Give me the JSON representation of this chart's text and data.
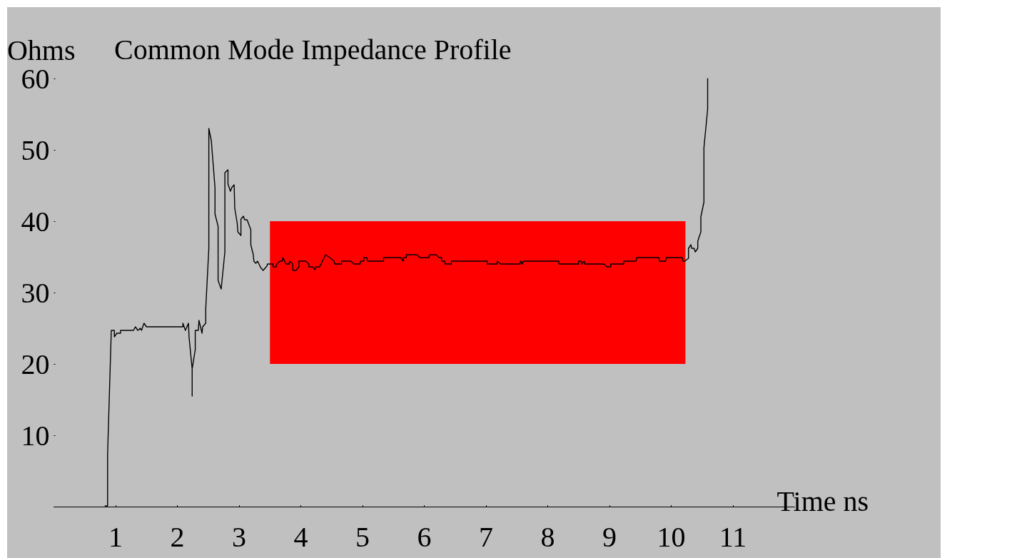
{
  "chart_data": {
    "type": "line",
    "title": "Common Mode Impedance Profile",
    "xlabel": "Time ns",
    "ylabel": "Ohms",
    "xlim": [
      0,
      12
    ],
    "xticks": [
      1,
      2,
      3,
      4,
      5,
      6,
      7,
      8,
      9,
      10,
      11
    ],
    "ylim": [
      0,
      60
    ],
    "yticks": [
      10,
      20,
      30,
      40,
      50,
      60
    ],
    "grid": false,
    "marker": "none",
    "line_style": "solid",
    "series": [
      {
        "type": "area",
        "color": "#ff0000",
        "x": [
          3.5,
          10.23
        ],
        "values": [
          null,
          null
        ],
        "lower": [
          20,
          20
        ],
        "upper": [
          40,
          40
        ]
      },
      {
        "color": "#000000",
        "x": [
          0.83,
          0.87,
          0.87,
          0.93,
          0.98,
          0.98,
          1.02,
          1.08,
          1.08,
          1.29,
          1.32,
          1.36,
          1.4,
          1.42,
          1.46,
          1.5,
          2.09,
          2.09,
          2.13,
          2.18,
          2.19,
          2.24,
          2.24,
          2.24,
          2.29,
          2.29,
          2.34,
          2.35,
          2.4,
          2.41,
          2.46,
          2.46,
          2.51,
          2.51,
          2.55,
          2.61,
          2.61,
          2.66,
          2.66,
          2.71,
          2.77,
          2.77,
          2.82,
          2.82,
          2.86,
          2.88,
          2.92,
          2.93,
          2.97,
          2.98,
          3.03,
          3.03,
          3.07,
          3.09,
          3.13,
          3.19,
          3.19,
          3.23,
          3.24,
          3.27,
          3.3,
          3.35,
          3.39,
          3.45,
          3.46,
          3.55,
          3.55,
          3.6,
          3.61,
          3.66,
          3.7,
          3.71,
          3.76,
          3.81,
          3.82,
          3.87,
          3.87,
          3.92,
          3.97,
          3.97,
          4.08,
          4.13,
          4.13,
          4.19,
          4.23,
          4.24,
          4.3,
          4.33,
          4.35,
          4.4,
          4.47,
          4.54,
          4.55,
          4.66,
          4.66,
          4.81,
          4.86,
          4.96,
          4.97,
          5.02,
          5.02,
          5.07,
          5.08,
          5.34,
          5.34,
          5.62,
          5.66,
          5.66,
          5.71,
          5.71,
          5.88,
          5.93,
          6.08,
          6.08,
          6.19,
          6.24,
          6.28,
          6.28,
          6.33,
          6.34,
          6.44,
          6.44,
          7.02,
          7.02,
          7.18,
          7.18,
          7.24,
          7.55,
          7.56,
          7.59,
          7.6,
          8.18,
          8.18,
          8.5,
          8.5,
          8.54,
          8.55,
          8.59,
          8.6,
          8.91,
          8.96,
          9.02,
          9.02,
          9.23,
          9.23,
          9.43,
          9.44,
          9.8,
          9.81,
          9.91,
          9.92,
          10.18,
          10.19,
          10.22,
          10.28,
          10.28,
          10.32,
          10.33,
          10.37,
          10.39,
          10.43,
          10.43,
          10.48,
          10.48,
          10.53,
          10.53,
          10.59,
          10.59
        ],
        "values": [
          0.1,
          0.1,
          7.3,
          24.7,
          24.7,
          23.8,
          24.3,
          24.3,
          24.7,
          24.7,
          25.2,
          24.7,
          25.0,
          24.7,
          25.7,
          25.2,
          25.2,
          25.7,
          24.7,
          25.7,
          23.7,
          19.3,
          15.5,
          19.3,
          22.0,
          24.7,
          24.7,
          26.1,
          24.3,
          25.2,
          25.7,
          27.8,
          36.2,
          53.0,
          51.3,
          44.7,
          41.0,
          39.3,
          31.7,
          30.5,
          35.7,
          46.8,
          47.2,
          45.2,
          44.2,
          44.7,
          45.1,
          41.8,
          39.7,
          38.5,
          38.0,
          40.3,
          40.7,
          40.2,
          40.2,
          38.8,
          36.7,
          35.3,
          34.4,
          34.1,
          34.4,
          33.5,
          33.1,
          33.7,
          34.0,
          34.0,
          33.6,
          33.6,
          34.0,
          34.4,
          34.4,
          34.9,
          34.0,
          34.0,
          34.4,
          34.0,
          33.1,
          33.1,
          33.6,
          34.4,
          34.4,
          34.0,
          33.6,
          33.6,
          33.2,
          33.6,
          33.6,
          34.0,
          34.4,
          35.3,
          34.9,
          34.4,
          34.0,
          34.0,
          34.4,
          34.4,
          34.0,
          34.0,
          34.4,
          34.4,
          34.9,
          34.9,
          34.4,
          34.4,
          34.9,
          34.9,
          34.4,
          34.9,
          34.9,
          35.3,
          35.3,
          34.9,
          34.9,
          35.3,
          35.3,
          34.9,
          34.9,
          34.4,
          34.4,
          34.0,
          34.0,
          34.4,
          34.4,
          34.0,
          34.0,
          34.4,
          34.0,
          34.0,
          34.4,
          34.0,
          34.4,
          34.4,
          34.0,
          34.0,
          34.4,
          34.4,
          34.0,
          34.4,
          34.0,
          34.0,
          33.6,
          33.6,
          34.0,
          34.0,
          34.4,
          34.4,
          34.9,
          34.9,
          34.4,
          34.4,
          34.9,
          34.9,
          34.4,
          34.4,
          34.8,
          36.2,
          36.7,
          36.2,
          36.2,
          35.7,
          36.2,
          37.2,
          38.5,
          40.6,
          42.7,
          50.3,
          55.7,
          60.0
        ]
      }
    ]
  }
}
